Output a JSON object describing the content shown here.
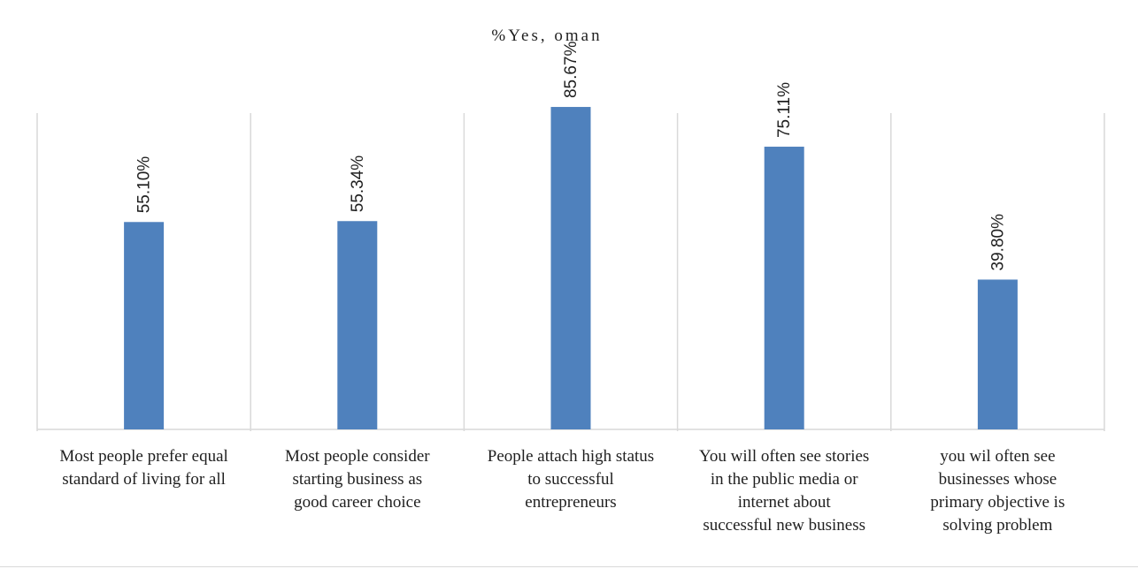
{
  "chart_data": {
    "type": "bar",
    "title": "%Yes, oman",
    "xlabel": "",
    "ylabel": "",
    "ylim": [
      0,
      100
    ],
    "grid": "vertical separators between categories",
    "legend": "none",
    "bar_color": "#4f81bd",
    "categories": [
      "Most people prefer equal\nstandard of  living for all",
      "Most people consider\nstarting business  as\ngood career choice",
      "People attach high status\nto successful\nentrepreneurs",
      "You will often see stories\nin the public media or\ninternet about\nsuccessful new business",
      "you wil often see\nbusinesses whose\nprimary objective is\nsolving problem"
    ],
    "values": [
      55.1,
      55.34,
      85.67,
      75.11,
      39.8
    ],
    "data_labels": [
      "55.10%",
      "55.34%",
      "85.67%",
      "75.11%",
      "39.80%"
    ]
  }
}
